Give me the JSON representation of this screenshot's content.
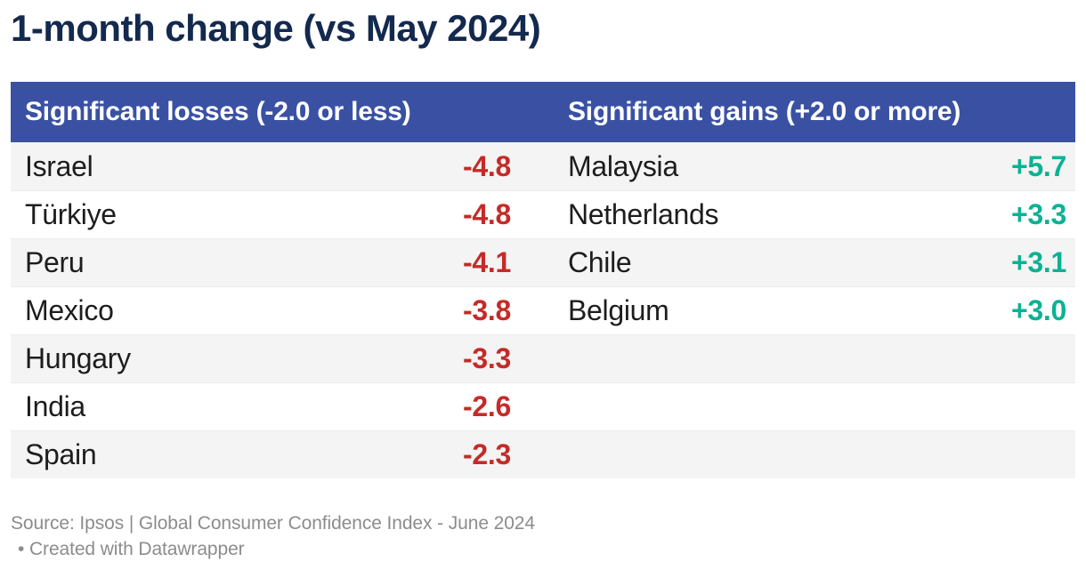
{
  "title": "1-month change (vs May 2024)",
  "table": {
    "losses": {
      "header": "Significant losses (-2.0 or less)",
      "rows": [
        {
          "country": "Israel",
          "value": "-4.8"
        },
        {
          "country": "Türkiye",
          "value": "-4.8"
        },
        {
          "country": "Peru",
          "value": "-4.1"
        },
        {
          "country": "Mexico",
          "value": "-3.8"
        },
        {
          "country": "Hungary",
          "value": "-3.3"
        },
        {
          "country": "India",
          "value": "-2.6"
        },
        {
          "country": "Spain",
          "value": "-2.3"
        }
      ]
    },
    "gains": {
      "header": "Significant gains (+2.0 or more)",
      "rows": [
        {
          "country": "Malaysia",
          "value": "+5.7"
        },
        {
          "country": "Netherlands",
          "value": "+3.3"
        },
        {
          "country": "Chile",
          "value": "+3.1"
        },
        {
          "country": "Belgium",
          "value": "+3.0"
        }
      ]
    }
  },
  "footer": {
    "source": "Source: Ipsos | Global Consumer Confidence Index - June 2024",
    "attribution": "• Created with Datawrapper"
  },
  "colors": {
    "title_text": "#13294e",
    "header_bg": "#3a51a3",
    "header_text": "#ffffff",
    "negative_value": "#c42b28",
    "positive_value": "#0bb294",
    "row_stripe": "#f4f4f4",
    "row_border": "#ececec",
    "country_text": "#1d1d1d",
    "footer_text": "#8c8c8c"
  },
  "chart_data": {
    "type": "table",
    "title": "1-month change (vs May 2024)",
    "columns": [
      "Significant losses (-2.0 or less)",
      "Significant gains (+2.0 or more)"
    ],
    "losses": [
      {
        "country": "Israel",
        "change": -4.8
      },
      {
        "country": "Türkiye",
        "change": -4.8
      },
      {
        "country": "Peru",
        "change": -4.1
      },
      {
        "country": "Mexico",
        "change": -3.8
      },
      {
        "country": "Hungary",
        "change": -3.3
      },
      {
        "country": "India",
        "change": -2.6
      },
      {
        "country": "Spain",
        "change": -2.3
      }
    ],
    "gains": [
      {
        "country": "Malaysia",
        "change": 5.7
      },
      {
        "country": "Netherlands",
        "change": 3.3
      },
      {
        "country": "Chile",
        "change": 3.1
      },
      {
        "country": "Belgium",
        "change": 3.0
      }
    ],
    "threshold_loss": -2.0,
    "threshold_gain": 2.0,
    "source": "Ipsos | Global Consumer Confidence Index - June 2024",
    "attribution": "Created with Datawrapper"
  }
}
